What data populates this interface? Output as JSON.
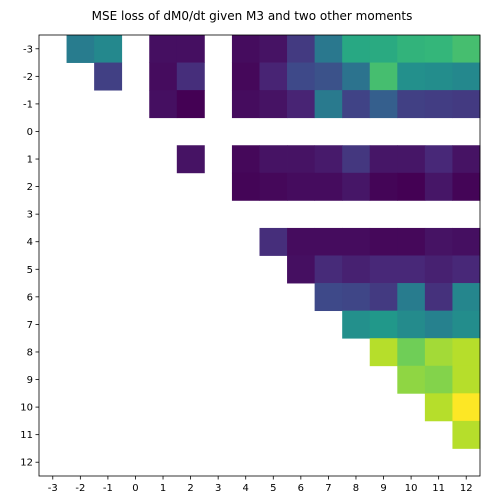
{
  "chart_data": {
    "type": "heatmap",
    "title": "MSE loss of dM0/dt given M3 and two other moments",
    "xlabel": "",
    "ylabel": "",
    "x": [
      -3,
      -2,
      -1,
      0,
      1,
      2,
      3,
      4,
      5,
      6,
      7,
      8,
      9,
      10,
      11,
      12
    ],
    "y": [
      -3,
      -2,
      -1,
      0,
      1,
      2,
      3,
      4,
      5,
      6,
      7,
      8,
      9,
      10,
      11,
      12
    ],
    "y_axis_direction": "top-to-bottom",
    "colormap": "viridis",
    "value_scale": [
      0,
      1
    ],
    "missing": "blank (white)",
    "grid": false,
    "values": [
      [
        null,
        0.42,
        0.47,
        null,
        0.04,
        0.04,
        null,
        0.03,
        0.05,
        0.17,
        0.4,
        0.6,
        0.61,
        0.65,
        0.66,
        0.7
      ],
      [
        null,
        null,
        0.19,
        null,
        0.03,
        0.13,
        null,
        0.02,
        0.1,
        0.22,
        0.25,
        0.38,
        0.7,
        0.5,
        0.49,
        0.47
      ],
      [
        null,
        null,
        null,
        null,
        0.04,
        0.0,
        null,
        0.03,
        0.05,
        0.1,
        0.41,
        0.2,
        0.3,
        0.19,
        0.18,
        0.17
      ],
      [
        null,
        null,
        null,
        null,
        null,
        null,
        null,
        null,
        null,
        null,
        null,
        null,
        null,
        null,
        null,
        null
      ],
      [
        null,
        null,
        null,
        null,
        null,
        0.05,
        null,
        0.02,
        0.05,
        0.05,
        0.07,
        0.16,
        0.06,
        0.06,
        0.11,
        0.05
      ],
      [
        null,
        null,
        null,
        null,
        null,
        null,
        null,
        0.01,
        0.02,
        0.03,
        0.03,
        0.06,
        0.01,
        0.0,
        0.06,
        0.01
      ],
      [
        null,
        null,
        null,
        null,
        null,
        null,
        null,
        null,
        null,
        null,
        null,
        null,
        null,
        null,
        null,
        null
      ],
      [
        null,
        null,
        null,
        null,
        null,
        null,
        null,
        null,
        0.13,
        0.03,
        0.03,
        0.03,
        0.02,
        0.02,
        0.05,
        0.04
      ],
      [
        null,
        null,
        null,
        null,
        null,
        null,
        null,
        null,
        null,
        0.04,
        0.12,
        0.09,
        0.11,
        0.11,
        0.09,
        0.11
      ],
      [
        null,
        null,
        null,
        null,
        null,
        null,
        null,
        null,
        null,
        null,
        0.22,
        0.21,
        0.17,
        0.42,
        0.14,
        0.46
      ],
      [
        null,
        null,
        null,
        null,
        null,
        null,
        null,
        null,
        null,
        null,
        null,
        0.5,
        0.53,
        0.48,
        0.44,
        0.49
      ],
      [
        null,
        null,
        null,
        null,
        null,
        null,
        null,
        null,
        null,
        null,
        null,
        null,
        0.89,
        0.78,
        0.86,
        0.89
      ],
      [
        null,
        null,
        null,
        null,
        null,
        null,
        null,
        null,
        null,
        null,
        null,
        null,
        null,
        0.83,
        0.81,
        0.89
      ],
      [
        null,
        null,
        null,
        null,
        null,
        null,
        null,
        null,
        null,
        null,
        null,
        null,
        null,
        null,
        0.89,
        1.0
      ],
      [
        null,
        null,
        null,
        null,
        null,
        null,
        null,
        null,
        null,
        null,
        null,
        null,
        null,
        null,
        null,
        0.89
      ],
      [
        null,
        null,
        null,
        null,
        null,
        null,
        null,
        null,
        null,
        null,
        null,
        null,
        null,
        null,
        null,
        null
      ]
    ]
  }
}
